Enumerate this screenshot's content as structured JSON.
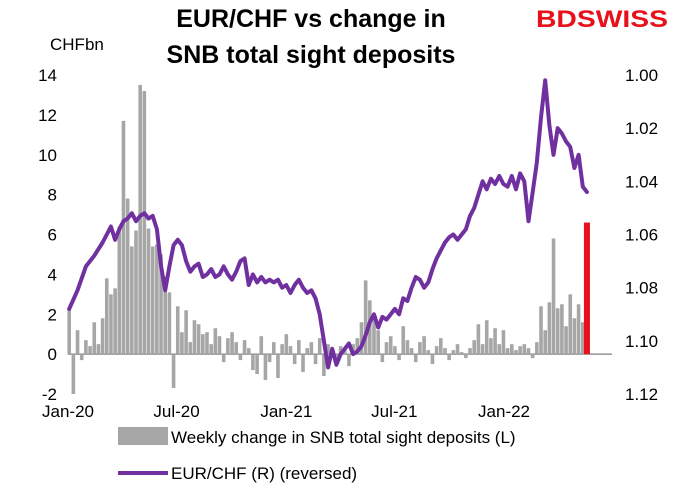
{
  "chart_data": {
    "type": "bar+line",
    "title_lines": [
      "EUR/CHF vs change in",
      "SNB total sight deposits"
    ],
    "logo": "BDSWISS",
    "left_axis": {
      "unit_label": "CHFbn",
      "range": [
        -2,
        14
      ],
      "ticks": [
        "-2",
        "0",
        "2",
        "4",
        "6",
        "8",
        "10",
        "12",
        "14"
      ]
    },
    "right_axis": {
      "range": [
        1.12,
        1.0
      ],
      "reversed": true,
      "ticks": [
        "1.00",
        "1.02",
        "1.04",
        "1.06",
        "1.08",
        "1.10",
        "1.12"
      ]
    },
    "x_axis": {
      "start": "2020-01-01",
      "end": "2022-07-01",
      "tick_labels": [
        {
          "label": "Jan-20",
          "date": "2020-01-01"
        },
        {
          "label": "Jul-20",
          "date": "2020-07-01"
        },
        {
          "label": "Jan-21",
          "date": "2021-01-01"
        },
        {
          "label": "Jul-21",
          "date": "2021-07-01"
        },
        {
          "label": "Jan-22",
          "date": "2022-01-01"
        }
      ]
    },
    "series": [
      {
        "name": "Weekly change in SNB total sight deposits (L)",
        "type": "bar",
        "axis": "left",
        "color": "#a6a6a6",
        "points": [
          [
            "2020-01-03",
            2.3
          ],
          [
            "2020-01-10",
            -2.0
          ],
          [
            "2020-01-17",
            1.2
          ],
          [
            "2020-01-24",
            -0.3
          ],
          [
            "2020-01-31",
            0.7
          ],
          [
            "2020-02-07",
            0.4
          ],
          [
            "2020-02-14",
            1.6
          ],
          [
            "2020-02-21",
            0.5
          ],
          [
            "2020-02-28",
            1.8
          ],
          [
            "2020-03-06",
            3.8
          ],
          [
            "2020-03-13",
            3.0
          ],
          [
            "2020-03-20",
            3.3
          ],
          [
            "2020-03-27",
            6.4
          ],
          [
            "2020-04-03",
            11.7
          ],
          [
            "2020-04-10",
            7.8
          ],
          [
            "2020-04-17",
            5.4
          ],
          [
            "2020-04-24",
            6.2
          ],
          [
            "2020-05-01",
            13.5
          ],
          [
            "2020-05-08",
            13.2
          ],
          [
            "2020-05-15",
            6.3
          ],
          [
            "2020-05-22",
            5.4
          ],
          [
            "2020-05-29",
            5.5
          ],
          [
            "2020-06-05",
            5.0
          ],
          [
            "2020-06-12",
            3.9
          ],
          [
            "2020-06-19",
            3.1
          ],
          [
            "2020-06-26",
            -1.7
          ],
          [
            "2020-07-03",
            2.4
          ],
          [
            "2020-07-10",
            1.1
          ],
          [
            "2020-07-17",
            2.2
          ],
          [
            "2020-07-24",
            0.6
          ],
          [
            "2020-07-31",
            1.7
          ],
          [
            "2020-08-07",
            1.5
          ],
          [
            "2020-08-14",
            1.0
          ],
          [
            "2020-08-21",
            1.1
          ],
          [
            "2020-08-28",
            0.5
          ],
          [
            "2020-09-04",
            1.3
          ],
          [
            "2020-09-11",
            0.9
          ],
          [
            "2020-09-18",
            -0.4
          ],
          [
            "2020-09-25",
            0.8
          ],
          [
            "2020-10-02",
            1.1
          ],
          [
            "2020-10-09",
            0.6
          ],
          [
            "2020-10-16",
            -0.3
          ],
          [
            "2020-10-23",
            0.7
          ],
          [
            "2020-10-30",
            0.3
          ],
          [
            "2020-11-06",
            -0.8
          ],
          [
            "2020-11-13",
            -1.0
          ],
          [
            "2020-11-20",
            0.9
          ],
          [
            "2020-11-27",
            -1.3
          ],
          [
            "2020-12-04",
            -0.4
          ],
          [
            "2020-12-11",
            0.6
          ],
          [
            "2020-12-18",
            -1.2
          ],
          [
            "2020-12-25",
            0.5
          ],
          [
            "2021-01-01",
            1.0
          ],
          [
            "2021-01-08",
            0.4
          ],
          [
            "2021-01-15",
            -0.5
          ],
          [
            "2021-01-22",
            0.7
          ],
          [
            "2021-01-29",
            -0.9
          ],
          [
            "2021-02-05",
            0.3
          ],
          [
            "2021-02-12",
            0.6
          ],
          [
            "2021-02-19",
            -0.5
          ],
          [
            "2021-02-26",
            0.8
          ],
          [
            "2021-03-05",
            -1.1
          ],
          [
            "2021-03-12",
            0.5
          ],
          [
            "2021-03-19",
            0.2
          ],
          [
            "2021-03-26",
            -0.3
          ],
          [
            "2021-04-02",
            0.4
          ],
          [
            "2021-04-09",
            0.3
          ],
          [
            "2021-04-16",
            -0.6
          ],
          [
            "2021-04-23",
            0.5
          ],
          [
            "2021-04-30",
            0.8
          ],
          [
            "2021-05-07",
            1.6
          ],
          [
            "2021-05-14",
            3.7
          ],
          [
            "2021-05-21",
            2.7
          ],
          [
            "2021-05-28",
            1.8
          ],
          [
            "2021-06-04",
            1.2
          ],
          [
            "2021-06-11",
            -0.4
          ],
          [
            "2021-06-18",
            0.6
          ],
          [
            "2021-06-25",
            0.9
          ],
          [
            "2021-07-02",
            0.4
          ],
          [
            "2021-07-09",
            -0.3
          ],
          [
            "2021-07-16",
            1.4
          ],
          [
            "2021-07-23",
            0.7
          ],
          [
            "2021-07-30",
            0.3
          ],
          [
            "2021-08-06",
            -0.4
          ],
          [
            "2021-08-13",
            0.6
          ],
          [
            "2021-08-20",
            0.9
          ],
          [
            "2021-08-27",
            0.2
          ],
          [
            "2021-09-03",
            -0.5
          ],
          [
            "2021-09-10",
            0.4
          ],
          [
            "2021-09-17",
            0.8
          ],
          [
            "2021-09-24",
            0.3
          ],
          [
            "2021-10-01",
            -0.3
          ],
          [
            "2021-10-08",
            0.2
          ],
          [
            "2021-10-15",
            0.5
          ],
          [
            "2021-10-22",
            0.1
          ],
          [
            "2021-10-29",
            -0.2
          ],
          [
            "2021-11-05",
            0.3
          ],
          [
            "2021-11-12",
            0.7
          ],
          [
            "2021-11-19",
            1.5
          ],
          [
            "2021-11-26",
            0.5
          ],
          [
            "2021-12-03",
            1.7
          ],
          [
            "2021-12-10",
            0.8
          ],
          [
            "2021-12-17",
            1.3
          ],
          [
            "2021-12-24",
            0.5
          ],
          [
            "2021-12-31",
            1.2
          ],
          [
            "2022-01-07",
            0.3
          ],
          [
            "2022-01-14",
            0.5
          ],
          [
            "2022-01-21",
            0.2
          ],
          [
            "2022-01-28",
            0.4
          ],
          [
            "2022-02-04",
            0.5
          ],
          [
            "2022-02-11",
            0.3
          ],
          [
            "2022-02-18",
            -0.2
          ],
          [
            "2022-02-25",
            0.6
          ],
          [
            "2022-03-04",
            2.4
          ],
          [
            "2022-03-11",
            1.2
          ],
          [
            "2022-03-18",
            2.6
          ],
          [
            "2022-03-25",
            5.8
          ],
          [
            "2022-04-01",
            2.3
          ],
          [
            "2022-04-08",
            2.5
          ],
          [
            "2022-04-15",
            1.4
          ],
          [
            "2022-04-22",
            3.0
          ],
          [
            "2022-04-29",
            1.8
          ],
          [
            "2022-05-06",
            2.5
          ],
          [
            "2022-05-13",
            1.6
          ]
        ]
      },
      {
        "name": "",
        "type": "bar",
        "axis": "left",
        "color": "#e8111b",
        "points": [
          [
            "2022-05-20",
            6.6
          ]
        ]
      },
      {
        "name": "EUR/CHF (R) (reversed)",
        "type": "line",
        "axis": "right",
        "color": "#7030a0",
        "points": [
          [
            "2020-01-03",
            1.088
          ],
          [
            "2020-01-17",
            1.081
          ],
          [
            "2020-01-31",
            1.072
          ],
          [
            "2020-02-14",
            1.068
          ],
          [
            "2020-02-28",
            1.063
          ],
          [
            "2020-03-06",
            1.06
          ],
          [
            "2020-03-13",
            1.057
          ],
          [
            "2020-03-20",
            1.062
          ],
          [
            "2020-03-27",
            1.058
          ],
          [
            "2020-04-03",
            1.055
          ],
          [
            "2020-04-10",
            1.054
          ],
          [
            "2020-04-17",
            1.052
          ],
          [
            "2020-04-24",
            1.055
          ],
          [
            "2020-05-01",
            1.053
          ],
          [
            "2020-05-08",
            1.052
          ],
          [
            "2020-05-15",
            1.054
          ],
          [
            "2020-05-22",
            1.053
          ],
          [
            "2020-05-29",
            1.058
          ],
          [
            "2020-06-05",
            1.072
          ],
          [
            "2020-06-12",
            1.081
          ],
          [
            "2020-06-19",
            1.072
          ],
          [
            "2020-06-26",
            1.064
          ],
          [
            "2020-07-03",
            1.062
          ],
          [
            "2020-07-10",
            1.064
          ],
          [
            "2020-07-17",
            1.07
          ],
          [
            "2020-07-24",
            1.074
          ],
          [
            "2020-07-31",
            1.072
          ],
          [
            "2020-08-07",
            1.071
          ],
          [
            "2020-08-14",
            1.076
          ],
          [
            "2020-08-21",
            1.075
          ],
          [
            "2020-08-28",
            1.073
          ],
          [
            "2020-09-04",
            1.076
          ],
          [
            "2020-09-11",
            1.075
          ],
          [
            "2020-09-18",
            1.072
          ],
          [
            "2020-09-25",
            1.075
          ],
          [
            "2020-10-02",
            1.077
          ],
          [
            "2020-10-09",
            1.074
          ],
          [
            "2020-10-16",
            1.07
          ],
          [
            "2020-10-23",
            1.069
          ],
          [
            "2020-10-30",
            1.079
          ],
          [
            "2020-11-06",
            1.075
          ],
          [
            "2020-11-13",
            1.078
          ],
          [
            "2020-11-20",
            1.076
          ],
          [
            "2020-11-27",
            1.078
          ],
          [
            "2020-12-04",
            1.077
          ],
          [
            "2020-12-11",
            1.078
          ],
          [
            "2020-12-18",
            1.077
          ],
          [
            "2020-12-25",
            1.08
          ],
          [
            "2021-01-01",
            1.079
          ],
          [
            "2021-01-08",
            1.082
          ],
          [
            "2021-01-15",
            1.079
          ],
          [
            "2021-01-22",
            1.077
          ],
          [
            "2021-01-29",
            1.08
          ],
          [
            "2021-02-05",
            1.082
          ],
          [
            "2021-02-12",
            1.081
          ],
          [
            "2021-02-19",
            1.084
          ],
          [
            "2021-02-26",
            1.09
          ],
          [
            "2021-03-05",
            1.1
          ],
          [
            "2021-03-12",
            1.11
          ],
          [
            "2021-03-19",
            1.103
          ],
          [
            "2021-03-26",
            1.109
          ],
          [
            "2021-04-02",
            1.105
          ],
          [
            "2021-04-09",
            1.103
          ],
          [
            "2021-04-16",
            1.101
          ],
          [
            "2021-04-23",
            1.105
          ],
          [
            "2021-04-30",
            1.104
          ],
          [
            "2021-05-07",
            1.102
          ],
          [
            "2021-05-14",
            1.098
          ],
          [
            "2021-05-21",
            1.093
          ],
          [
            "2021-05-28",
            1.09
          ],
          [
            "2021-06-04",
            1.095
          ],
          [
            "2021-06-11",
            1.091
          ],
          [
            "2021-06-18",
            1.092
          ],
          [
            "2021-06-25",
            1.09
          ],
          [
            "2021-07-02",
            1.088
          ],
          [
            "2021-07-09",
            1.09
          ],
          [
            "2021-07-16",
            1.084
          ],
          [
            "2021-07-23",
            1.085
          ],
          [
            "2021-07-30",
            1.08
          ],
          [
            "2021-08-06",
            1.076
          ],
          [
            "2021-08-13",
            1.077
          ],
          [
            "2021-08-20",
            1.08
          ],
          [
            "2021-08-27",
            1.078
          ],
          [
            "2021-09-03",
            1.073
          ],
          [
            "2021-09-10",
            1.069
          ],
          [
            "2021-09-17",
            1.066
          ],
          [
            "2021-09-24",
            1.063
          ],
          [
            "2021-10-01",
            1.061
          ],
          [
            "2021-10-08",
            1.06
          ],
          [
            "2021-10-15",
            1.062
          ],
          [
            "2021-10-22",
            1.06
          ],
          [
            "2021-10-29",
            1.058
          ],
          [
            "2021-11-05",
            1.053
          ],
          [
            "2021-11-12",
            1.05
          ],
          [
            "2021-11-19",
            1.045
          ],
          [
            "2021-11-26",
            1.04
          ],
          [
            "2021-12-03",
            1.043
          ],
          [
            "2021-12-10",
            1.039
          ],
          [
            "2021-12-17",
            1.041
          ],
          [
            "2021-12-24",
            1.038
          ],
          [
            "2021-12-31",
            1.041
          ],
          [
            "2022-01-07",
            1.042
          ],
          [
            "2022-01-14",
            1.038
          ],
          [
            "2022-01-21",
            1.043
          ],
          [
            "2022-01-28",
            1.037
          ],
          [
            "2022-02-04",
            1.04
          ],
          [
            "2022-02-11",
            1.055
          ],
          [
            "2022-02-18",
            1.044
          ],
          [
            "2022-02-25",
            1.033
          ],
          [
            "2022-03-04",
            1.016
          ],
          [
            "2022-03-11",
            1.002
          ],
          [
            "2022-03-18",
            1.019
          ],
          [
            "2022-03-25",
            1.03
          ],
          [
            "2022-04-01",
            1.02
          ],
          [
            "2022-04-08",
            1.022
          ],
          [
            "2022-04-15",
            1.025
          ],
          [
            "2022-04-22",
            1.027
          ],
          [
            "2022-04-29",
            1.035
          ],
          [
            "2022-05-06",
            1.03
          ],
          [
            "2022-05-13",
            1.042
          ],
          [
            "2022-05-20",
            1.044
          ]
        ]
      }
    ],
    "legend": {
      "placement": "bottom",
      "items": [
        "Weekly change in SNB total sight deposits (L)",
        "EUR/CHF (R) (reversed)"
      ]
    },
    "grid": false
  }
}
